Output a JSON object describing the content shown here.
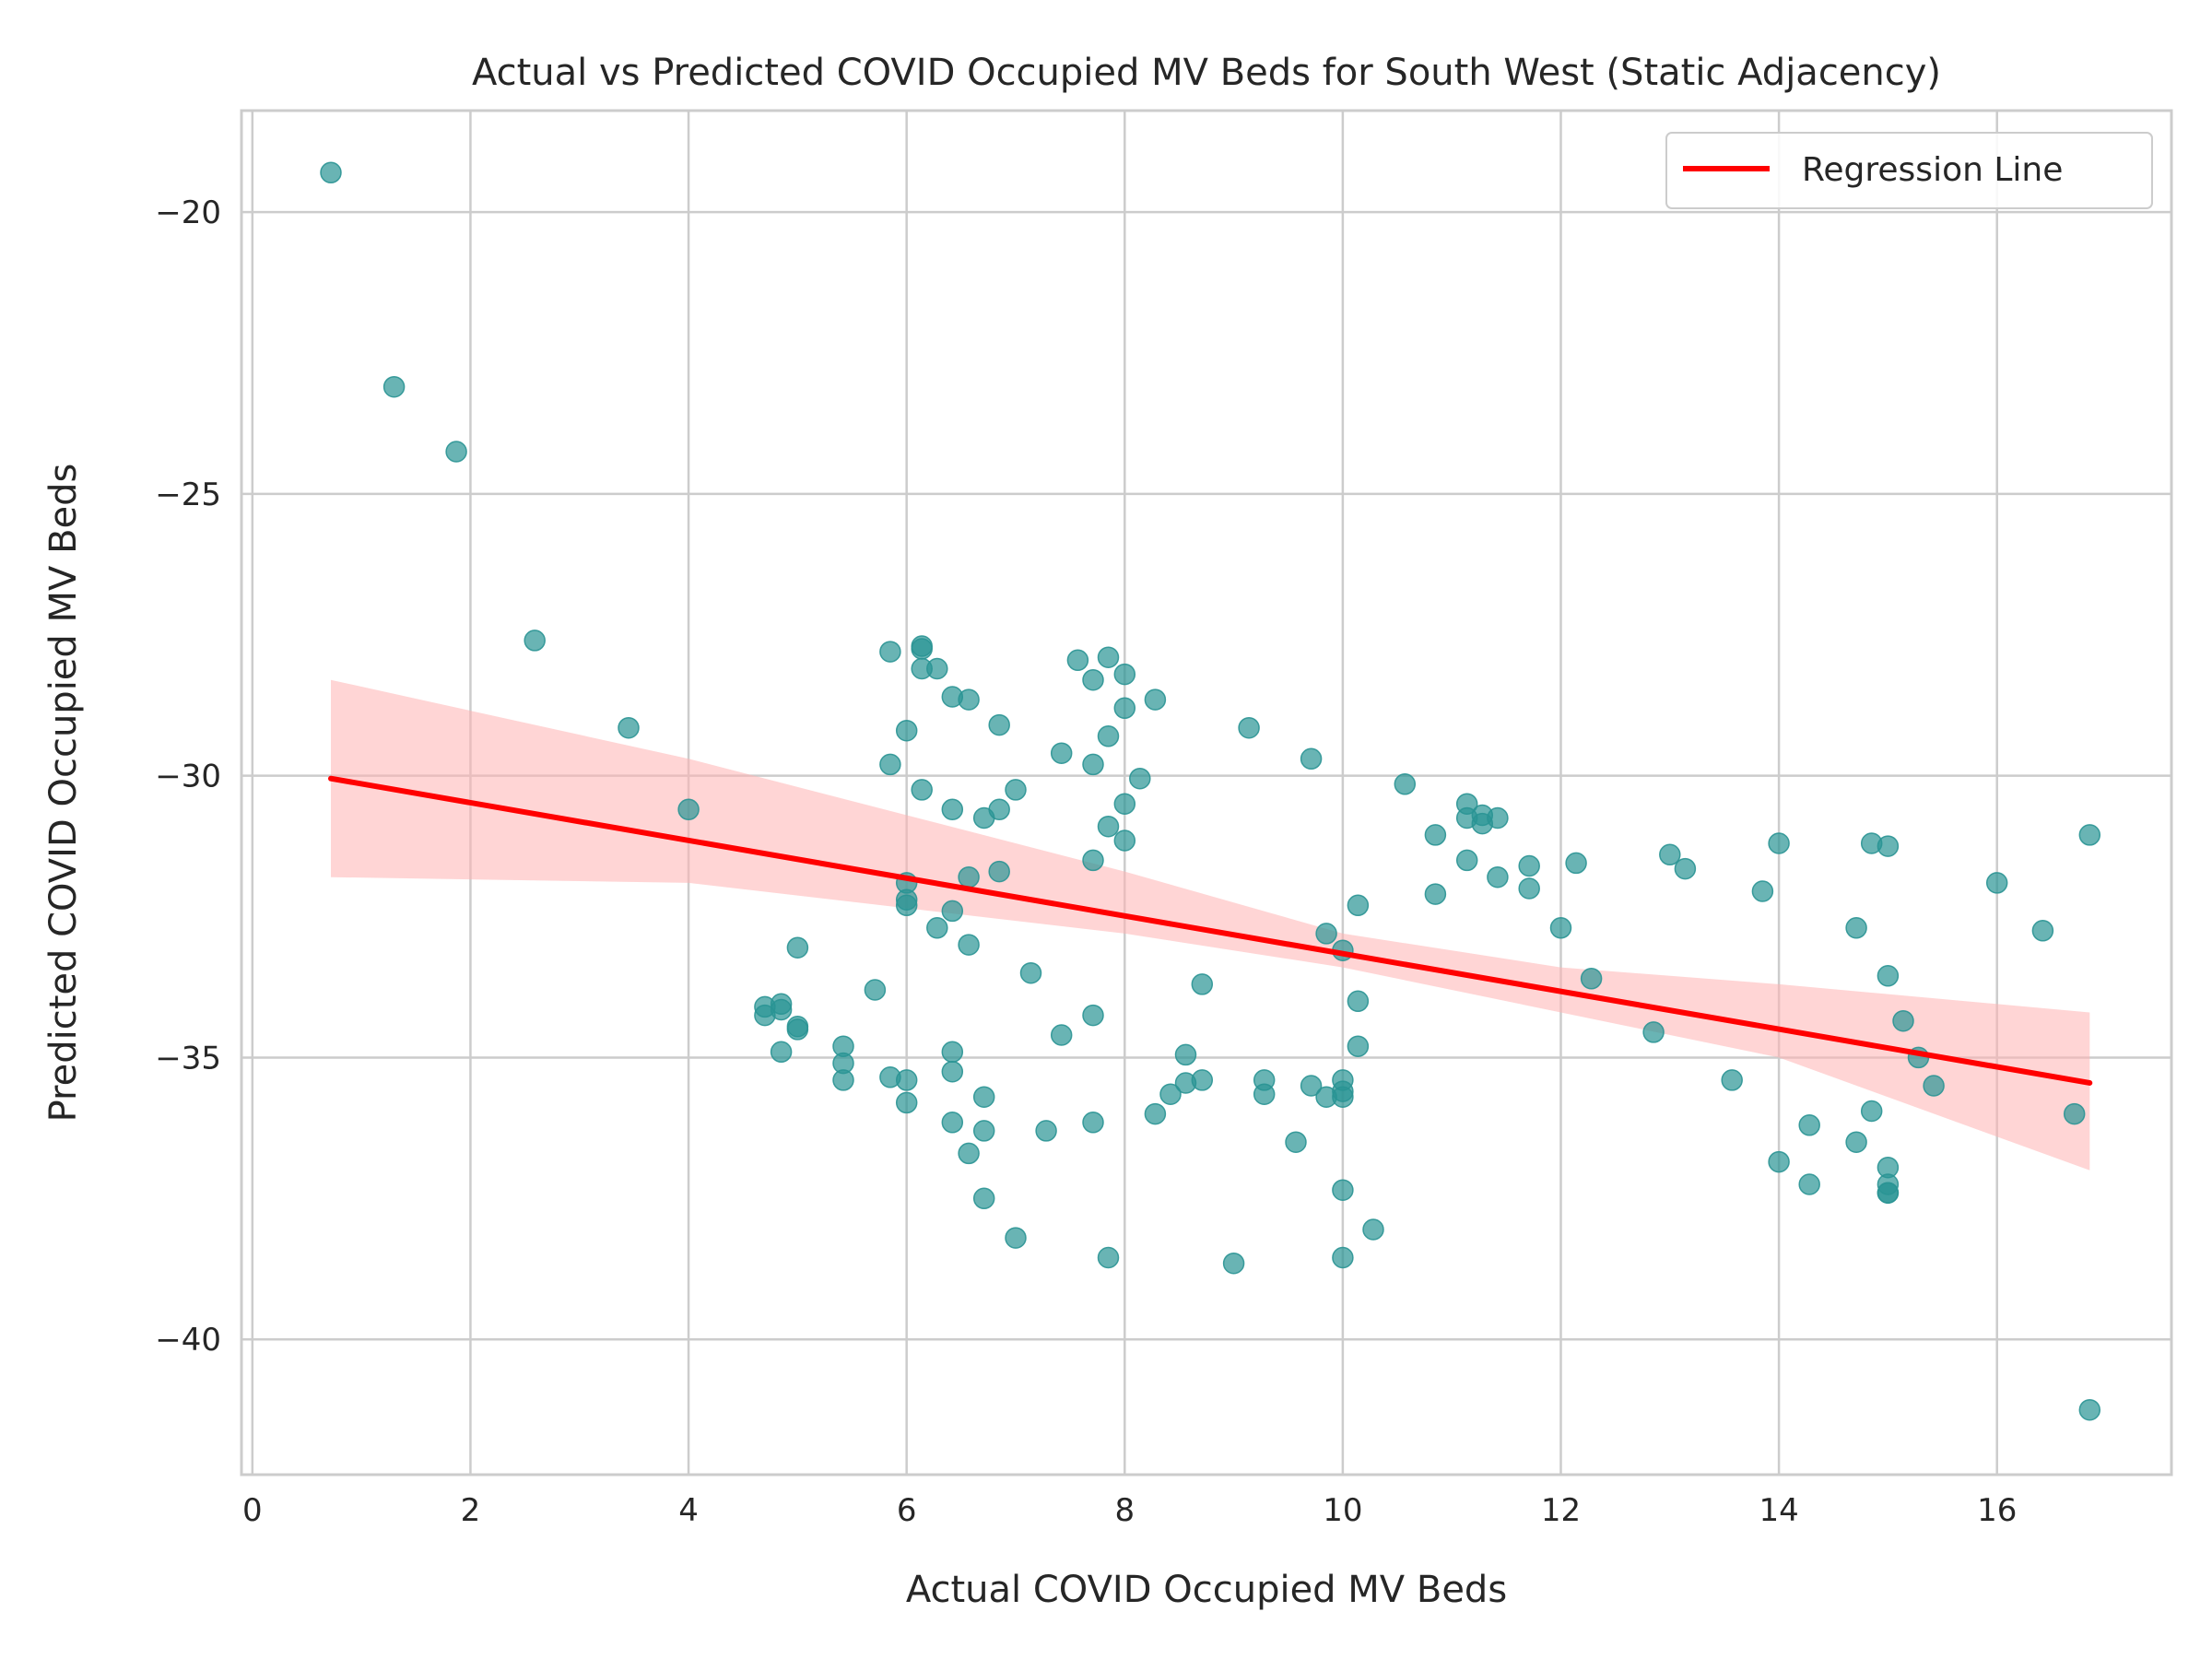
{
  "chart_data": {
    "type": "scatter",
    "title": "Actual vs Predicted COVID Occupied MV Beds for South West (Static Adjacency)",
    "xlabel": "Actual COVID Occupied MV Beds",
    "ylabel": "Predicted COVID Occupied MV Beds",
    "xlim": [
      -0.1,
      17.6
    ],
    "ylim": [
      -42.4,
      -18.2
    ],
    "xticks": [
      0,
      2,
      4,
      6,
      8,
      10,
      12,
      14,
      16
    ],
    "yticks": [
      -20,
      -25,
      -30,
      -35,
      -40
    ],
    "ytick_labels": [
      "−20",
      "−25",
      "−30",
      "−35",
      "−40"
    ],
    "grid": true,
    "legend": {
      "position": "top-right",
      "entries": [
        "Regression Line"
      ]
    },
    "colors": {
      "points": "#2a9494",
      "line": "#ff0000",
      "band": "#ffb3b3",
      "grid": "#cccccc",
      "frame": "#cccccc"
    },
    "regression": {
      "name": "Regression Line",
      "x": [
        0.72,
        16.85
      ],
      "y": [
        -30.05,
        -35.45
      ],
      "ci_x": [
        0.72,
        4.0,
        8.0,
        10.0,
        12.0,
        14.0,
        16.85
      ],
      "ci_upper": [
        -28.3,
        -29.7,
        -31.7,
        -32.8,
        -33.4,
        -33.7,
        -34.2
      ],
      "ci_lower": [
        -31.8,
        -31.9,
        -32.8,
        -33.4,
        -34.2,
        -35.0,
        -37.0
      ]
    },
    "points": {
      "x": [
        0.72,
        1.3,
        1.87,
        2.59,
        3.45,
        4.0,
        4.7,
        4.7,
        4.85,
        4.85,
        4.85,
        5.0,
        5.0,
        5.0,
        5.42,
        5.42,
        5.42,
        5.71,
        5.85,
        5.85,
        5.85,
        6.0,
        6.0,
        6.0,
        6.0,
        6.0,
        6.0,
        6.14,
        6.14,
        6.14,
        6.14,
        6.28,
        6.28,
        6.42,
        6.42,
        6.42,
        6.42,
        6.42,
        6.42,
        6.57,
        6.57,
        6.57,
        6.57,
        6.71,
        6.71,
        6.71,
        6.71,
        6.85,
        6.85,
        6.85,
        7.0,
        7.0,
        7.14,
        7.28,
        7.42,
        7.42,
        7.57,
        7.71,
        7.71,
        7.71,
        7.71,
        7.71,
        7.85,
        7.85,
        7.85,
        7.85,
        8.0,
        8.0,
        8.0,
        8.0,
        8.14,
        8.28,
        8.28,
        8.42,
        8.56,
        8.56,
        8.71,
        8.71,
        9.0,
        9.14,
        9.28,
        9.28,
        9.57,
        9.71,
        9.71,
        9.85,
        9.85,
        10.0,
        10.0,
        10.0,
        10.0,
        10.0,
        10.0,
        10.14,
        10.14,
        10.14,
        10.28,
        10.57,
        10.85,
        10.85,
        11.14,
        11.14,
        11.14,
        11.28,
        11.28,
        11.42,
        11.42,
        11.71,
        11.71,
        12.0,
        12.14,
        12.28,
        12.85,
        13.0,
        13.14,
        13.57,
        13.85,
        14.0,
        14.0,
        14.28,
        14.28,
        14.71,
        14.71,
        14.85,
        14.85,
        15.0,
        15.0,
        15.0,
        15.0,
        15.0,
        15.0,
        15.14,
        15.28,
        15.42,
        16.0,
        16.42,
        16.71,
        16.85,
        16.85
      ],
      "y": [
        -19.3,
        -23.1,
        -24.25,
        -27.6,
        -29.15,
        -30.6,
        -34.1,
        -34.25,
        -34.05,
        -34.15,
        -34.9,
        -33.05,
        -34.45,
        -34.5,
        -34.8,
        -35.1,
        -35.4,
        -33.8,
        -27.8,
        -29.8,
        -35.35,
        -29.2,
        -31.9,
        -32.2,
        -35.4,
        -35.8,
        -32.3,
        -27.7,
        -27.75,
        -28.1,
        -30.25,
        -28.1,
        -32.7,
        -28.6,
        -30.6,
        -32.4,
        -34.9,
        -35.25,
        -36.15,
        -28.65,
        -31.8,
        -33.0,
        -36.7,
        -30.75,
        -35.7,
        -36.3,
        -37.5,
        -29.1,
        -30.6,
        -31.7,
        -30.25,
        -38.2,
        -33.5,
        -36.3,
        -29.6,
        -34.6,
        -27.95,
        -28.3,
        -29.8,
        -31.5,
        -34.25,
        -36.15,
        -27.9,
        -29.3,
        -30.9,
        -38.55,
        -28.2,
        -28.8,
        -30.5,
        -31.15,
        -30.05,
        -28.65,
        -36.0,
        -35.65,
        -34.95,
        -35.45,
        -33.7,
        -35.4,
        -38.65,
        -29.15,
        -35.4,
        -35.65,
        -36.5,
        -29.7,
        -35.5,
        -32.8,
        -35.7,
        -33.1,
        -35.4,
        -35.6,
        -35.7,
        -37.35,
        -38.55,
        -32.3,
        -34.0,
        -34.8,
        -38.05,
        -30.15,
        -31.05,
        -32.1,
        -30.5,
        -30.75,
        -31.5,
        -30.7,
        -30.85,
        -30.75,
        -31.8,
        -31.6,
        -32.0,
        -32.7,
        -31.55,
        -33.6,
        -34.55,
        -31.4,
        -31.65,
        -35.4,
        -32.05,
        -31.2,
        -36.85,
        -36.2,
        -37.25,
        -32.7,
        -36.5,
        -31.2,
        -35.95,
        -31.25,
        -33.55,
        -36.95,
        -37.25,
        -37.4,
        -37.4,
        -34.35,
        -35.0,
        -35.5,
        -31.9,
        -32.75,
        -36.0,
        -31.05,
        -41.25
      ]
    }
  }
}
